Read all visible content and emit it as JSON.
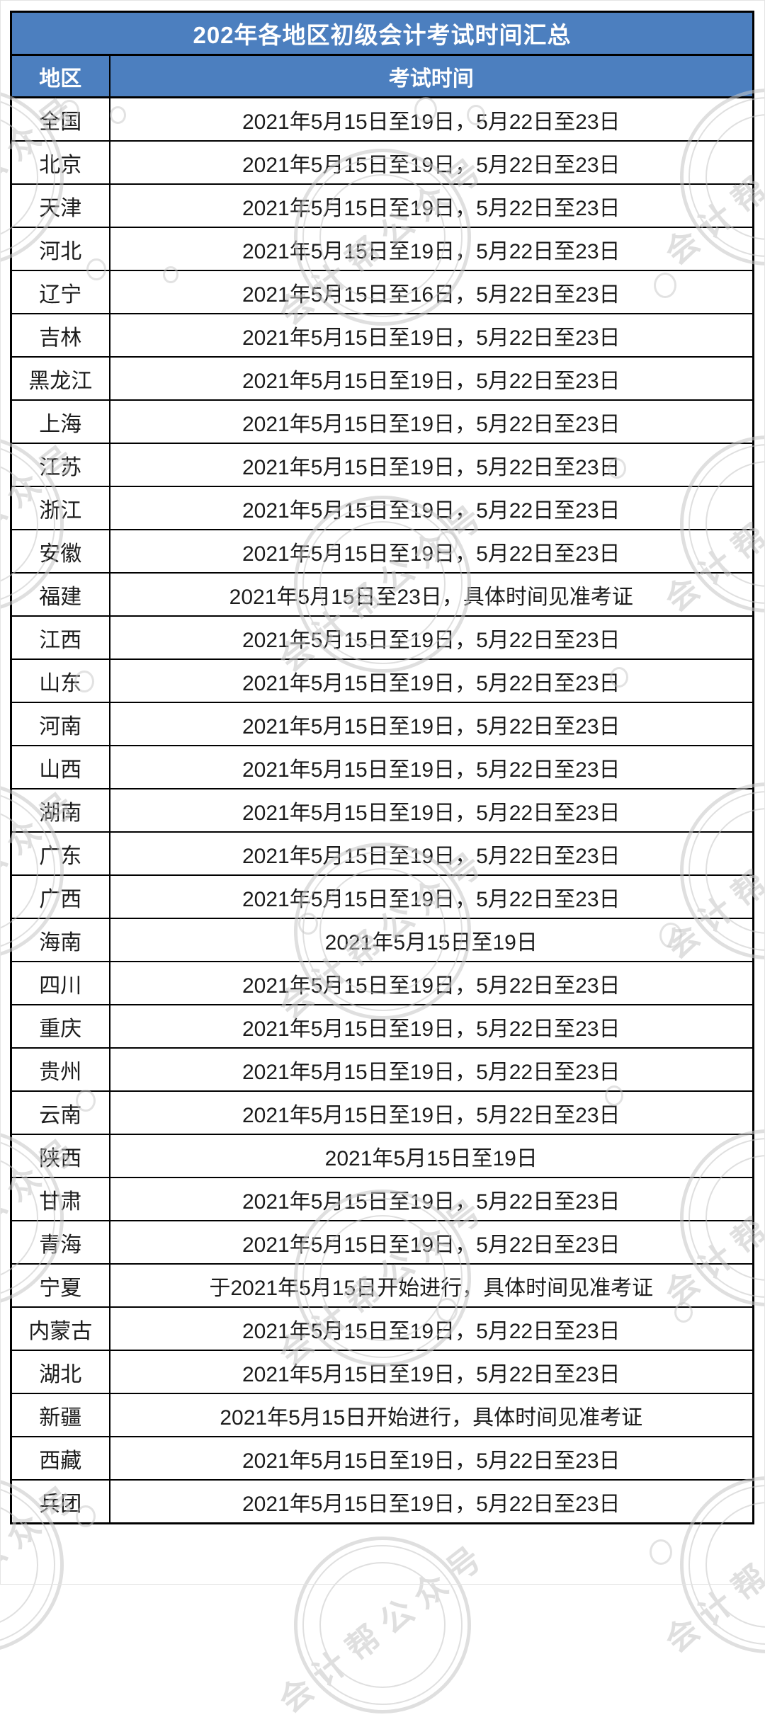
{
  "chart_data": {
    "type": "table",
    "title": "202年各地区初级会计考试时间汇总",
    "columns": [
      "地区",
      "考试时间"
    ],
    "rows": [
      [
        "全国",
        "2021年5月15日至19日，5月22日至23日"
      ],
      [
        "北京",
        "2021年5月15日至19日，5月22日至23日"
      ],
      [
        "天津",
        "2021年5月15日至19日，5月22日至23日"
      ],
      [
        "河北",
        "2021年5月15日至19日，5月22日至23日"
      ],
      [
        "辽宁",
        "2021年5月15日至16日，5月22日至23日"
      ],
      [
        "吉林",
        "2021年5月15日至19日，5月22日至23日"
      ],
      [
        "黑龙江",
        "2021年5月15日至19日，5月22日至23日"
      ],
      [
        "上海",
        "2021年5月15日至19日，5月22日至23日"
      ],
      [
        "江苏",
        "2021年5月15日至19日，5月22日至23日"
      ],
      [
        "浙江",
        "2021年5月15日至19日，5月22日至23日"
      ],
      [
        "安徽",
        "2021年5月15日至19日，5月22日至23日"
      ],
      [
        "福建",
        "2021年5月15日至23日，具体时间见准考证"
      ],
      [
        "江西",
        "2021年5月15日至19日，5月22日至23日"
      ],
      [
        "山东",
        "2021年5月15日至19日，5月22日至23日"
      ],
      [
        "河南",
        "2021年5月15日至19日，5月22日至23日"
      ],
      [
        "山西",
        "2021年5月15日至19日，5月22日至23日"
      ],
      [
        "湖南",
        "2021年5月15日至19日，5月22日至23日"
      ],
      [
        "广东",
        "2021年5月15日至19日，5月22日至23日"
      ],
      [
        "广西",
        "2021年5月15日至19日，5月22日至23日"
      ],
      [
        "海南",
        "2021年5月15日至19日"
      ],
      [
        "四川",
        "2021年5月15日至19日，5月22日至23日"
      ],
      [
        "重庆",
        "2021年5月15日至19日，5月22日至23日"
      ],
      [
        "贵州",
        "2021年5月15日至19日，5月22日至23日"
      ],
      [
        "云南",
        "2021年5月15日至19日，5月22日至23日"
      ],
      [
        "陕西",
        "2021年5月15日至19日"
      ],
      [
        "甘肃",
        "2021年5月15日至19日，5月22日至23日"
      ],
      [
        "青海",
        "2021年5月15日至19日，5月22日至23日"
      ],
      [
        "宁夏",
        "于2021年5月15日开始进行，具体时间见准考证"
      ],
      [
        "内蒙古",
        "2021年5月15日至19日，5月22日至23日"
      ],
      [
        "湖北",
        "2021年5月15日至19日，5月22日至23日"
      ],
      [
        "新疆",
        "2021年5月15日开始进行，具体时间见准考证"
      ],
      [
        "西藏",
        "2021年5月15日至19日，5月22日至23日"
      ],
      [
        "兵团",
        "2021年5月15日至19日，5月22日至23日"
      ]
    ],
    "layout": {
      "header_rows": 2,
      "grid": "on",
      "title_position": "top-merged-cell"
    }
  },
  "watermark": {
    "stamp_text": "会计帮公众号"
  },
  "styles": {
    "header_bg": "#4C7FBF",
    "header_text": "#ffffff",
    "border": "#000000",
    "cell_text": "#1c1c1c",
    "watermark_gray": "#c6c6c6",
    "page_bg": "#ffffff"
  }
}
